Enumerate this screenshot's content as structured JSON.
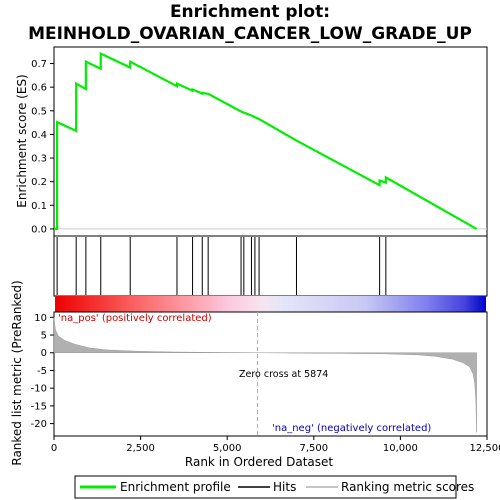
{
  "chart_data": {
    "type": "line",
    "title_line1": "Enrichment plot:",
    "title_line2": "MEINHOLD_OVARIAN_CANCER_LOW_GRADE_UP",
    "xlabel": "Rank in Ordered Dataset",
    "ylabel_top": "Enrichment score (ES)",
    "ylabel_bottom": "Ranked list metric (PreRanked)",
    "x_range": [
      0,
      12500
    ],
    "x_ticks": [
      0,
      2500,
      5000,
      7500,
      10000,
      12500
    ],
    "x_tick_labels": [
      "0",
      "2,500",
      "5,000",
      "7,500",
      "10,000",
      "12,500"
    ],
    "es_range": [
      -0.03,
      0.77
    ],
    "es_ticks": [
      0.0,
      0.1,
      0.2,
      0.3,
      0.4,
      0.5,
      0.6,
      0.7
    ],
    "es_tick_labels": [
      "0.0",
      "0.1",
      "0.2",
      "0.3",
      "0.4",
      "0.5",
      "0.6",
      "0.7"
    ],
    "metric_range": [
      -23.5,
      11.5
    ],
    "metric_ticks": [
      10,
      5,
      0,
      -5,
      -10,
      -15,
      -20
    ],
    "metric_tick_labels": [
      "10",
      "5",
      "0",
      "-5",
      "-10",
      "-15",
      "-20"
    ],
    "total_genes": 12200,
    "zero_cross_rank": 5874,
    "hits": [
      90,
      640,
      920,
      1350,
      2200,
      3550,
      4000,
      4280,
      4450,
      5400,
      5480,
      5700,
      5800,
      5920,
      7000,
      9400,
      9580
    ],
    "enrichment_profile": [
      [
        0,
        0.0
      ],
      [
        89,
        0.0
      ],
      [
        90,
        0.452
      ],
      [
        639,
        0.415
      ],
      [
        640,
        0.615
      ],
      [
        919,
        0.592
      ],
      [
        920,
        0.708
      ],
      [
        1349,
        0.678
      ],
      [
        1350,
        0.742
      ],
      [
        2199,
        0.683
      ],
      [
        2200,
        0.708
      ],
      [
        3549,
        0.604
      ],
      [
        3550,
        0.615
      ],
      [
        3999,
        0.585
      ],
      [
        4000,
        0.59
      ],
      [
        4279,
        0.573
      ],
      [
        4280,
        0.575
      ],
      [
        4450,
        0.572
      ],
      [
        5400,
        0.497
      ],
      [
        5480,
        0.492
      ],
      [
        5700,
        0.48
      ],
      [
        5800,
        0.473
      ],
      [
        5920,
        0.465
      ],
      [
        7000,
        0.374
      ],
      [
        9399,
        0.185
      ],
      [
        9400,
        0.205
      ],
      [
        9579,
        0.196
      ],
      [
        9580,
        0.218
      ],
      [
        12200,
        0.0
      ]
    ],
    "ranked_metric_profile": [
      [
        0,
        10.0
      ],
      [
        40,
        6.5
      ],
      [
        120,
        4.8
      ],
      [
        300,
        3.5
      ],
      [
        600,
        2.4
      ],
      [
        1000,
        1.4
      ],
      [
        1500,
        0.8
      ],
      [
        2500,
        0.4
      ],
      [
        3500,
        0.2
      ],
      [
        4500,
        0.1
      ],
      [
        5874,
        0.0
      ],
      [
        7000,
        -0.1
      ],
      [
        8500,
        -0.2
      ],
      [
        9500,
        -0.3
      ],
      [
        10500,
        -0.6
      ],
      [
        11000,
        -1.0
      ],
      [
        11500,
        -1.8
      ],
      [
        11800,
        -2.8
      ],
      [
        12000,
        -4.0
      ],
      [
        12100,
        -6.0
      ],
      [
        12150,
        -9.0
      ],
      [
        12180,
        -14.0
      ],
      [
        12200,
        -22.5
      ]
    ],
    "annotation_pos": "'na_pos' (positively correlated)",
    "annotation_neg": "'na_neg' (negatively correlated)",
    "annotation_zero": "Zero cross at 5874",
    "legend": [
      {
        "label": "Enrichment profile",
        "color": "#00ee00"
      },
      {
        "label": "Hits",
        "color": "#000000"
      },
      {
        "label": "Ranking metric scores",
        "color": "#b0b0b0"
      }
    ],
    "colors": {
      "profile": "#00ee00",
      "metric_fill": "#b0b0b0",
      "zero_line": "#aaaaaa"
    }
  }
}
